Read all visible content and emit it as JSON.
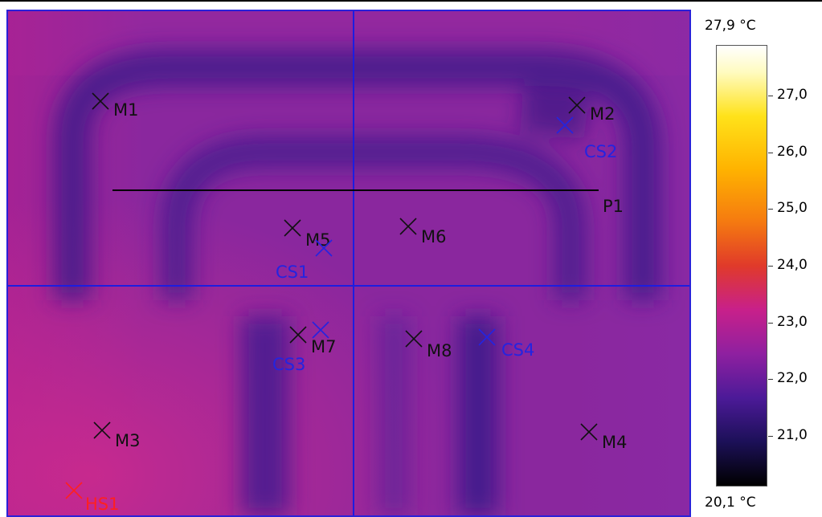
{
  "colors": {
    "frame": "#2a21d8",
    "crosshair": "#1d1de0",
    "marker_black": "#111111",
    "marker_blue": "#2424e0",
    "marker_red": "#ff2020",
    "profile_line": "#000000"
  },
  "scale": {
    "max_label": "27,9 °C",
    "min_label": "20,1 °C",
    "min_value": 20.1,
    "max_value": 27.9,
    "ticks": [
      {
        "value": 27.0,
        "label": "27,0"
      },
      {
        "value": 26.0,
        "label": "26,0"
      },
      {
        "value": 25.0,
        "label": "25,0"
      },
      {
        "value": 24.0,
        "label": "24,0"
      },
      {
        "value": 23.0,
        "label": "23,0"
      },
      {
        "value": 22.0,
        "label": "22,0"
      },
      {
        "value": 21.0,
        "label": "21,0"
      }
    ]
  },
  "thermogram": {
    "profile_line_label": "P1",
    "markers": [
      {
        "id": "m1",
        "label": "M1",
        "kind": "measure"
      },
      {
        "id": "m2",
        "label": "M2",
        "kind": "measure"
      },
      {
        "id": "m3",
        "label": "M3",
        "kind": "measure"
      },
      {
        "id": "m4",
        "label": "M4",
        "kind": "measure"
      },
      {
        "id": "m5",
        "label": "M5",
        "kind": "measure"
      },
      {
        "id": "m6",
        "label": "M6",
        "kind": "measure"
      },
      {
        "id": "m7",
        "label": "M7",
        "kind": "measure"
      },
      {
        "id": "m8",
        "label": "M8",
        "kind": "measure"
      },
      {
        "id": "cs1",
        "label": "CS1",
        "kind": "cold"
      },
      {
        "id": "cs2",
        "label": "CS2",
        "kind": "cold"
      },
      {
        "id": "cs3",
        "label": "CS3",
        "kind": "cold"
      },
      {
        "id": "cs4",
        "label": "CS4",
        "kind": "cold"
      },
      {
        "id": "hs1",
        "label": "HS1",
        "kind": "hot"
      }
    ]
  }
}
